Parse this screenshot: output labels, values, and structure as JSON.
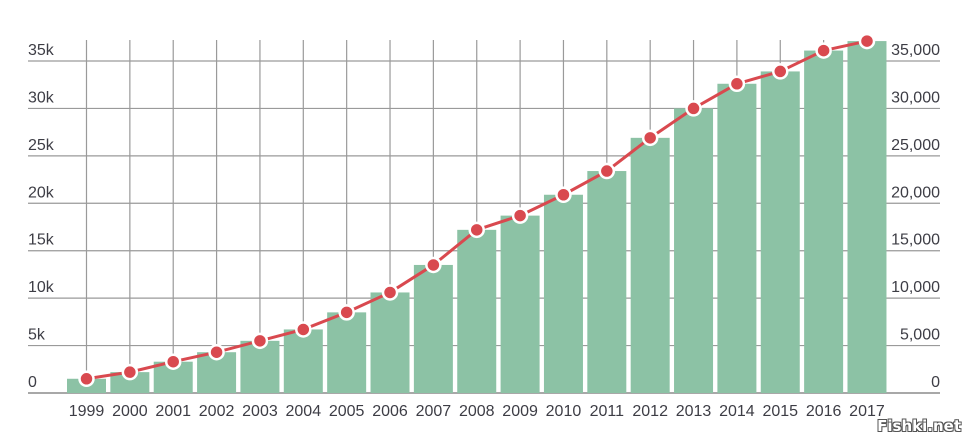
{
  "chart_data": {
    "type": "bar",
    "title": "",
    "xlabel": "",
    "ylabel": "",
    "categories": [
      "1999",
      "2000",
      "2001",
      "2002",
      "2003",
      "2004",
      "2005",
      "2006",
      "2007",
      "2008",
      "2009",
      "2010",
      "2011",
      "2012",
      "2013",
      "2014",
      "2015",
      "2016",
      "2017"
    ],
    "series": [
      {
        "name": "bars",
        "type": "bar",
        "color": "#8cc2a5",
        "values": [
          1500,
          2200,
          3300,
          4300,
          5500,
          6700,
          8500,
          10600,
          13500,
          17200,
          18700,
          20900,
          23400,
          26900,
          30000,
          32600,
          33900,
          36100,
          37100
        ]
      },
      {
        "name": "line",
        "type": "line",
        "color": "#d9494f",
        "values": [
          1500,
          2200,
          3300,
          4300,
          5500,
          6700,
          8500,
          10600,
          13500,
          17200,
          18700,
          20900,
          23400,
          26900,
          30000,
          32600,
          33900,
          36100,
          37100
        ]
      }
    ],
    "ylim": [
      0,
      37500
    ],
    "left_axis_ticks": [
      "0",
      "5k",
      "10k",
      "15k",
      "20k",
      "25k",
      "30k",
      "35k"
    ],
    "right_axis_ticks": [
      "0",
      "5,000",
      "10,000",
      "15,000",
      "20,000",
      "25,000",
      "30,000",
      "35,000"
    ],
    "tick_values": [
      0,
      5000,
      10000,
      15000,
      20000,
      25000,
      30000,
      35000
    ],
    "grid": true,
    "legend": null
  },
  "watermark": "Fishki.net"
}
